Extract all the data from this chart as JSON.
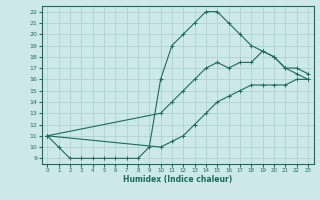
{
  "xlabel": "Humidex (Indice chaleur)",
  "bg_color": "#cce8e8",
  "line_color": "#1a6b5a",
  "grid_color": "#aacece",
  "xlim": [
    -0.5,
    23.5
  ],
  "ylim": [
    8.5,
    22.5
  ],
  "xticks": [
    0,
    1,
    2,
    3,
    4,
    5,
    6,
    7,
    8,
    9,
    10,
    11,
    12,
    13,
    14,
    15,
    16,
    17,
    18,
    19,
    20,
    21,
    22,
    23
  ],
  "yticks": [
    9,
    10,
    11,
    12,
    13,
    14,
    15,
    16,
    17,
    18,
    19,
    20,
    21,
    22
  ],
  "curve1_x": [
    0,
    1,
    2,
    3,
    4,
    5,
    6,
    7,
    8,
    9,
    10,
    11,
    12,
    13,
    14,
    15,
    16,
    17,
    18,
    19,
    20,
    21,
    22,
    23
  ],
  "curve1_y": [
    11,
    10,
    9,
    9,
    9,
    9,
    9,
    9,
    9,
    10,
    16,
    19,
    20,
    21,
    22,
    22,
    21,
    20,
    19,
    18.5,
    18,
    17,
    16.5,
    16
  ],
  "curve2_x": [
    0,
    10,
    11,
    12,
    13,
    14,
    15,
    16,
    17,
    18,
    19,
    20,
    21,
    22,
    23
  ],
  "curve2_y": [
    11,
    13,
    14,
    15,
    16,
    17,
    17.5,
    17,
    17.5,
    17.5,
    18.5,
    18,
    17,
    17,
    16.5
  ],
  "curve3_x": [
    0,
    10,
    11,
    12,
    13,
    14,
    15,
    16,
    17,
    18,
    19,
    20,
    21,
    22,
    23
  ],
  "curve3_y": [
    11,
    10,
    10.5,
    11,
    12,
    13,
    14,
    14.5,
    15,
    15.5,
    15.5,
    15.5,
    15.5,
    16,
    16
  ]
}
